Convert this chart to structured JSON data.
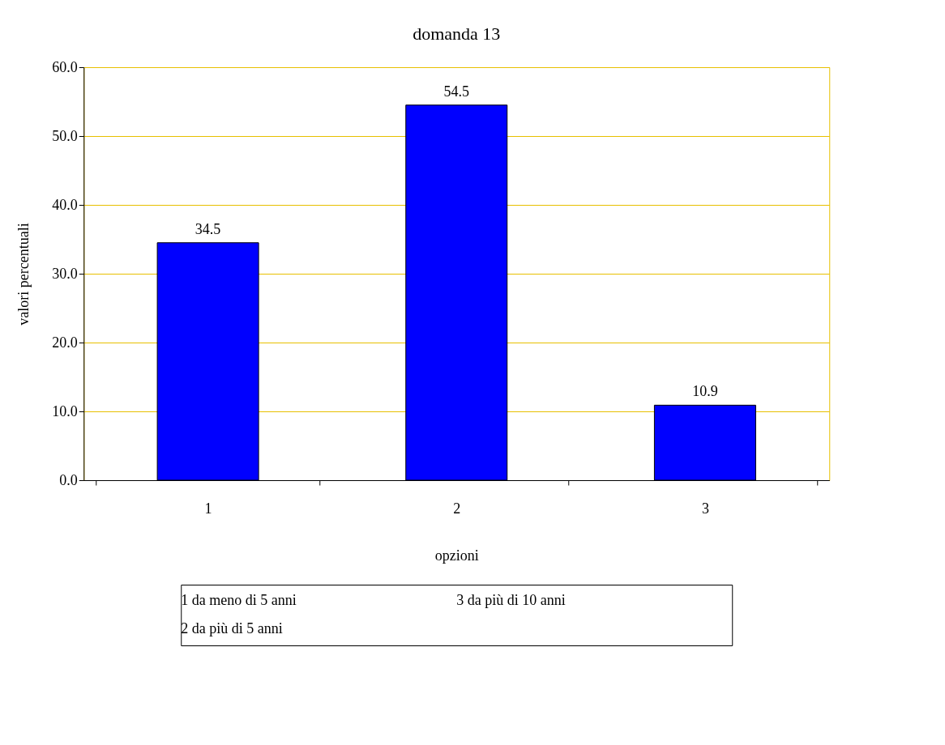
{
  "chart_data": {
    "type": "bar",
    "title": "domanda 13",
    "xlabel": "opzioni",
    "ylabel": "valori percentuali",
    "categories": [
      "1",
      "2",
      "3"
    ],
    "values": [
      34.5,
      54.5,
      10.9
    ],
    "color": "#0000ff",
    "ylim": [
      0,
      60
    ],
    "yticks": [
      {
        "value": 0,
        "label": "0.0"
      },
      {
        "value": 10,
        "label": "10.0"
      },
      {
        "value": 20,
        "label": "20.0"
      },
      {
        "value": 30,
        "label": "30.0"
      },
      {
        "value": 40,
        "label": "40.0"
      },
      {
        "value": 50,
        "label": "50.0"
      },
      {
        "value": 60,
        "label": "60.0"
      }
    ],
    "grid": "y",
    "data_labels": true,
    "annotations": [
      "1  da meno di 5 anni",
      "2  da più di 5 anni",
      "3  da più di 10 anni"
    ]
  }
}
